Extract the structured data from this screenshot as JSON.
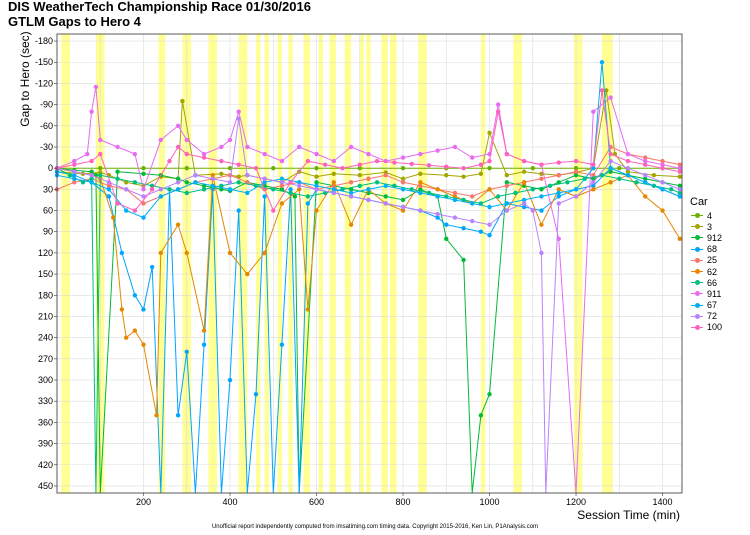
{
  "title": "DIS WeatherTech Championship Race 01/30/2016",
  "subtitle": "GTLM Gaps to Hero 4",
  "footer": "Unofficial report independently computed from imsatiming.com timing data. Copyright 2015-2016, Ken Lin, P1Analysis.com",
  "chart_data": {
    "type": "line",
    "xlabel": "Session Time (min)",
    "ylabel": "Gap to Hero (sec)",
    "xlim": [
      0,
      1445
    ],
    "ylim": [
      -190,
      460
    ],
    "y_inverted": true,
    "x_ticks": [
      200,
      400,
      600,
      800,
      1000,
      1200,
      1400
    ],
    "y_ticks": [
      -180,
      -150,
      -120,
      -90,
      -60,
      -30,
      0,
      30,
      60,
      90,
      120,
      150,
      180,
      210,
      240,
      270,
      300,
      330,
      360,
      390,
      420,
      450
    ],
    "grid": true,
    "legend_title": "Car",
    "legend_position": "right",
    "caution_periods": [
      [
        10,
        30
      ],
      [
        90,
        110
      ],
      [
        235,
        250
      ],
      [
        290,
        310
      ],
      [
        350,
        370
      ],
      [
        420,
        440
      ],
      [
        460,
        470
      ],
      [
        480,
        490
      ],
      [
        510,
        520
      ],
      [
        535,
        545
      ],
      [
        570,
        585
      ],
      [
        605,
        615
      ],
      [
        630,
        645
      ],
      [
        665,
        680
      ],
      [
        700,
        710
      ],
      [
        715,
        725
      ],
      [
        750,
        765
      ],
      [
        770,
        785
      ],
      [
        835,
        855
      ],
      [
        980,
        990
      ],
      [
        1055,
        1075
      ],
      [
        1195,
        1215
      ],
      [
        1260,
        1285
      ]
    ],
    "series": [
      {
        "name": "4",
        "color": "#6BB100",
        "x": [
          0,
          100,
          200,
          300,
          400,
          500,
          600,
          700,
          800,
          900,
          1000,
          1100,
          1200,
          1300,
          1400,
          1440
        ],
        "y": [
          0,
          0,
          0,
          0,
          0,
          0,
          0,
          0,
          0,
          0,
          0,
          0,
          0,
          0,
          0,
          0
        ]
      },
      {
        "name": "3",
        "color": "#A5A500",
        "x": [
          0,
          60,
          100,
          120,
          160,
          200,
          240,
          280,
          290,
          320,
          380,
          420,
          440,
          480,
          520,
          560,
          600,
          640,
          700,
          760,
          800,
          840,
          900,
          940,
          980,
          1000,
          1040,
          1080,
          1120,
          1160,
          1200,
          1240,
          1270,
          1290,
          1320,
          1380,
          1440
        ],
        "y": [
          5,
          8,
          6,
          10,
          20,
          25,
          12,
          15,
          -95,
          10,
          8,
          12,
          10,
          15,
          20,
          5,
          12,
          8,
          10,
          6,
          15,
          8,
          10,
          12,
          8,
          -50,
          10,
          5,
          8,
          10,
          6,
          0,
          -110,
          -20,
          5,
          10,
          12
        ]
      },
      {
        "name": "912",
        "color": "#00BA38",
        "x": [
          0,
          40,
          80,
          90,
          100,
          140,
          200,
          240,
          280,
          300,
          340,
          380,
          400,
          440,
          480,
          520,
          550,
          560,
          600,
          640,
          680,
          720,
          760,
          800,
          840,
          880,
          900,
          940,
          960,
          980,
          1000,
          1040,
          1080,
          1120,
          1160,
          1200,
          1240,
          1280,
          1320,
          1360,
          1400,
          1440
        ],
        "y": [
          0,
          3,
          5,
          10,
          460,
          5,
          8,
          10,
          15,
          20,
          25,
          30,
          32,
          20,
          25,
          30,
          40,
          460,
          20,
          25,
          30,
          35,
          40,
          45,
          30,
          40,
          100,
          130,
          460,
          350,
          320,
          20,
          25,
          30,
          20,
          10,
          15,
          5,
          10,
          15,
          20,
          25
        ]
      },
      {
        "name": "68",
        "color": "#00A5FF",
        "x": [
          0,
          40,
          80,
          120,
          150,
          180,
          200,
          220,
          240,
          260,
          280,
          300,
          320,
          340,
          360,
          380,
          400,
          420,
          440,
          460,
          480,
          500,
          520,
          540,
          560,
          580,
          600,
          640,
          680,
          720,
          760,
          800,
          840,
          880,
          900,
          940,
          980,
          1000,
          1040,
          1080,
          1120,
          1160,
          1200,
          1240,
          1280,
          1320,
          1360,
          1400,
          1440
        ],
        "y": [
          5,
          10,
          20,
          40,
          120,
          180,
          200,
          140,
          460,
          30,
          350,
          260,
          460,
          250,
          30,
          460,
          300,
          60,
          460,
          320,
          40,
          460,
          250,
          30,
          460,
          50,
          30,
          35,
          40,
          45,
          50,
          55,
          60,
          70,
          80,
          85,
          90,
          95,
          50,
          55,
          60,
          40,
          30,
          25,
          0,
          10,
          20,
          30,
          40
        ]
      },
      {
        "name": "25",
        "color": "#F8766D",
        "x": [
          0,
          40,
          80,
          120,
          160,
          200,
          240,
          280,
          320,
          360,
          400,
          440,
          480,
          520,
          560,
          600,
          640,
          680,
          720,
          760,
          800,
          840,
          880,
          920,
          960,
          1000,
          1040,
          1080,
          1120,
          1160,
          1200,
          1240,
          1280,
          1320,
          1360,
          1400,
          1440
        ],
        "y": [
          30,
          20,
          15,
          25,
          30,
          50,
          40,
          30,
          20,
          15,
          10,
          20,
          30,
          25,
          20,
          30,
          25,
          20,
          15,
          10,
          20,
          25,
          30,
          35,
          40,
          30,
          25,
          20,
          15,
          10,
          5,
          10,
          -30,
          -20,
          -15,
          -10,
          -5
        ]
      },
      {
        "name": "62",
        "color": "#E58700",
        "x": [
          0,
          40,
          80,
          100,
          130,
          150,
          160,
          180,
          200,
          230,
          240,
          280,
          300,
          340,
          360,
          400,
          440,
          480,
          520,
          560,
          580,
          600,
          640,
          680,
          720,
          760,
          800,
          840,
          880,
          920,
          960,
          1000,
          1040,
          1080,
          1120,
          1160,
          1200,
          1240,
          1280,
          1320,
          1360,
          1400,
          1440
        ],
        "y": [
          0,
          5,
          10,
          15,
          70,
          200,
          240,
          230,
          250,
          350,
          120,
          80,
          120,
          230,
          10,
          120,
          150,
          120,
          50,
          30,
          200,
          60,
          20,
          80,
          30,
          50,
          60,
          20,
          30,
          40,
          50,
          30,
          60,
          20,
          80,
          30,
          40,
          30,
          20,
          10,
          40,
          60,
          100
        ]
      },
      {
        "name": "66",
        "color": "#00BF7D",
        "x": [
          0,
          30,
          60,
          80,
          90,
          100,
          140,
          180,
          220,
          260,
          300,
          340,
          380,
          420,
          460,
          500,
          540,
          580,
          620,
          660,
          700,
          740,
          780,
          820,
          860,
          900,
          940,
          980,
          1020,
          1060,
          1100,
          1140,
          1180,
          1220,
          1260,
          1300,
          1340,
          1380,
          1420,
          1440
        ],
        "y": [
          0,
          10,
          20,
          15,
          460,
          10,
          15,
          20,
          25,
          30,
          35,
          30,
          25,
          20,
          25,
          30,
          35,
          40,
          35,
          30,
          25,
          20,
          25,
          30,
          35,
          40,
          45,
          50,
          40,
          35,
          30,
          25,
          20,
          15,
          10,
          15,
          20,
          25,
          30,
          35
        ]
      },
      {
        "name": "911",
        "color": "#E76BF3",
        "x": [
          0,
          40,
          70,
          80,
          90,
          100,
          140,
          180,
          200,
          240,
          280,
          300,
          340,
          380,
          400,
          420,
          440,
          480,
          520,
          560,
          600,
          640,
          680,
          720,
          760,
          800,
          840,
          880,
          920,
          960,
          1000,
          1020,
          1040,
          1080,
          1120,
          1160,
          1200,
          1240,
          1280,
          1320,
          1360,
          1400,
          1440
        ],
        "y": [
          0,
          -10,
          -20,
          -80,
          -115,
          -40,
          -30,
          -20,
          30,
          -40,
          -60,
          -40,
          -20,
          -30,
          -40,
          -80,
          -30,
          -20,
          -10,
          -30,
          -20,
          -10,
          -30,
          -20,
          -10,
          -15,
          -20,
          -25,
          -30,
          -15,
          -20,
          -90,
          -20,
          -10,
          -5,
          100,
          460,
          -80,
          -100,
          -20,
          -10,
          -5,
          0
        ]
      },
      {
        "name": "67",
        "color": "#00B0F6",
        "x": [
          0,
          40,
          80,
          120,
          160,
          200,
          240,
          280,
          320,
          360,
          400,
          440,
          480,
          520,
          560,
          600,
          640,
          680,
          720,
          760,
          800,
          840,
          880,
          920,
          960,
          1000,
          1040,
          1080,
          1120,
          1160,
          1200,
          1240,
          1260,
          1280,
          1320,
          1360,
          1400,
          1440
        ],
        "y": [
          10,
          15,
          20,
          30,
          60,
          70,
          40,
          30,
          20,
          25,
          30,
          35,
          20,
          15,
          20,
          25,
          30,
          35,
          30,
          25,
          30,
          35,
          40,
          45,
          50,
          55,
          50,
          45,
          40,
          35,
          30,
          0,
          -150,
          0,
          10,
          20,
          30,
          40
        ]
      },
      {
        "name": "72",
        "color": "#B983FF",
        "x": [
          0,
          40,
          80,
          120,
          160,
          200,
          240,
          280,
          320,
          360,
          400,
          420,
          440,
          480,
          520,
          560,
          600,
          640,
          680,
          720,
          760,
          800,
          840,
          880,
          920,
          960,
          1000,
          1040,
          1080,
          1100,
          1120,
          1130,
          1160,
          1200,
          1240,
          1280,
          1320,
          1360,
          1400,
          1440
        ],
        "y": [
          0,
          5,
          10,
          20,
          30,
          40,
          30,
          20,
          10,
          15,
          20,
          -70,
          10,
          15,
          20,
          25,
          30,
          35,
          40,
          45,
          50,
          55,
          60,
          65,
          70,
          75,
          80,
          60,
          50,
          60,
          120,
          460,
          50,
          40,
          20,
          -10,
          0,
          10,
          20,
          30
        ]
      },
      {
        "name": "100",
        "color": "#FF62BC",
        "x": [
          0,
          40,
          80,
          100,
          140,
          180,
          220,
          260,
          280,
          300,
          340,
          380,
          420,
          460,
          500,
          540,
          580,
          620,
          660,
          700,
          740,
          780,
          820,
          860,
          900,
          940,
          980,
          1000,
          1020,
          1040,
          1080,
          1120,
          1160,
          1200,
          1240,
          1260,
          1280,
          1320,
          1360,
          1400,
          1440
        ],
        "y": [
          0,
          -5,
          -10,
          -20,
          50,
          60,
          30,
          -10,
          -30,
          -20,
          -15,
          -10,
          -5,
          0,
          60,
          20,
          -10,
          -5,
          0,
          -5,
          -10,
          -8,
          -6,
          -4,
          -2,
          0,
          -5,
          -10,
          -80,
          -20,
          -10,
          -5,
          -8,
          -10,
          -5,
          -110,
          -20,
          -10,
          -5,
          0,
          5
        ]
      }
    ]
  }
}
